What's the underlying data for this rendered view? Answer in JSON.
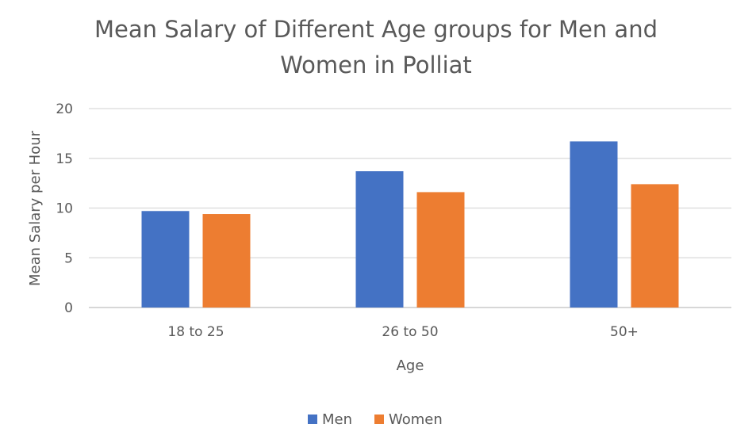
{
  "chart_data": {
    "type": "bar",
    "title_lines": [
      "Mean Salary of Different Age groups for Men and",
      "Women in Polliat"
    ],
    "xlabel": "Age",
    "ylabel": "Mean Salary per Hour",
    "categories": [
      "18 to 25",
      "26 to 50",
      "50+"
    ],
    "series": [
      {
        "name": "Men",
        "color": "#4472C4",
        "values": [
          9.7,
          13.7,
          16.7
        ]
      },
      {
        "name": "Women",
        "color": "#ED7D31",
        "values": [
          9.4,
          11.6,
          12.4
        ]
      }
    ],
    "ylim": [
      0,
      20
    ],
    "yticks": [
      "0",
      "5",
      "10",
      "15",
      "20"
    ],
    "grid": true,
    "legend_position": "bottom"
  }
}
